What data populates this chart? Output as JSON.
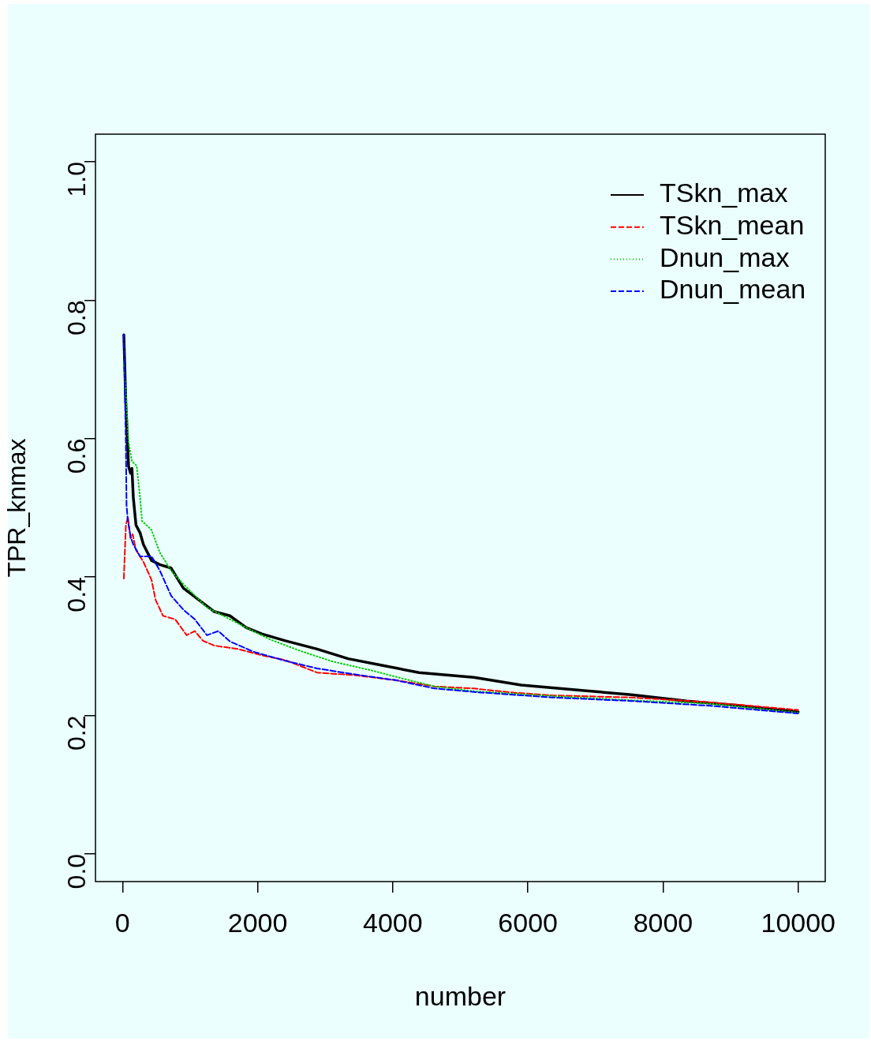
{
  "chart_data": {
    "type": "line",
    "xlabel": "number",
    "ylabel": "TPR_knmax",
    "xlim": [
      -400,
      10400
    ],
    "ylim": [
      -0.04,
      1.04
    ],
    "xticks": [
      0,
      2000,
      4000,
      6000,
      8000,
      10000
    ],
    "yticks": [
      {
        "value": 0,
        "label": "0.0"
      },
      {
        "value": 0.2,
        "label": "0.2"
      },
      {
        "value": 0.4,
        "label": "0.4"
      },
      {
        "value": 0.6,
        "label": "0.6"
      },
      {
        "value": 0.8,
        "label": "0.8"
      },
      {
        "value": 1,
        "label": "1.0"
      }
    ],
    "grid": false,
    "legend": "top right",
    "marker": "none",
    "series": [
      {
        "name": "TSkn_max",
        "color": "#000000",
        "line_style": "solid",
        "x": [
          20,
          50,
          90,
          120,
          140,
          160,
          200,
          260,
          310,
          430,
          550,
          720,
          900,
          1130,
          1360,
          1590,
          1830,
          2060,
          2410,
          2880,
          3340,
          3810,
          4390,
          5200,
          5900,
          6830,
          7530,
          8350,
          9160,
          10000
        ],
        "values": [
          0.75,
          0.65,
          0.56,
          0.55,
          0.557,
          0.515,
          0.475,
          0.464,
          0.447,
          0.424,
          0.418,
          0.413,
          0.384,
          0.367,
          0.35,
          0.344,
          0.327,
          0.318,
          0.308,
          0.296,
          0.282,
          0.273,
          0.262,
          0.255,
          0.244,
          0.236,
          0.23,
          0.221,
          0.214,
          0.205
        ]
      },
      {
        "name": "TSkn_mean",
        "color": "#ff0000",
        "line_style": "dashed",
        "x": [
          20,
          50,
          80,
          120,
          150,
          200,
          310,
          430,
          490,
          600,
          780,
          950,
          1070,
          1190,
          1360,
          1710,
          2060,
          2410,
          2880,
          3460,
          4040,
          4620,
          5200,
          5790,
          6370,
          7530,
          8700,
          10000
        ],
        "values": [
          0.398,
          0.475,
          0.487,
          0.456,
          0.462,
          0.439,
          0.422,
          0.396,
          0.367,
          0.344,
          0.339,
          0.316,
          0.322,
          0.308,
          0.301,
          0.296,
          0.287,
          0.28,
          0.262,
          0.258,
          0.251,
          0.242,
          0.239,
          0.233,
          0.229,
          0.226,
          0.219,
          0.208
        ]
      },
      {
        "name": "Dnun_max",
        "color": "#00cd00",
        "line_style": "dotted",
        "x": [
          20,
          60,
          90,
          140,
          210,
          260,
          290,
          430,
          550,
          720,
          900,
          1250,
          1710,
          2180,
          2640,
          3110,
          3690,
          4160,
          4620,
          5200,
          6370,
          7530,
          8700,
          10000
        ],
        "values": [
          0.71,
          0.652,
          0.595,
          0.567,
          0.561,
          0.515,
          0.481,
          0.468,
          0.436,
          0.409,
          0.39,
          0.356,
          0.333,
          0.31,
          0.293,
          0.278,
          0.265,
          0.253,
          0.242,
          0.235,
          0.228,
          0.222,
          0.217,
          0.204
        ]
      },
      {
        "name": "Dnun_mean",
        "color": "#0000ff",
        "line_style": "dashed",
        "x": [
          20,
          50,
          60,
          80,
          120,
          160,
          260,
          430,
          550,
          720,
          900,
          1070,
          1250,
          1420,
          1590,
          1940,
          2410,
          2880,
          3460,
          4040,
          4620,
          5200,
          6370,
          7530,
          8700,
          10000
        ],
        "values": [
          0.75,
          0.595,
          0.504,
          0.481,
          0.458,
          0.447,
          0.43,
          0.43,
          0.41,
          0.373,
          0.353,
          0.339,
          0.316,
          0.322,
          0.307,
          0.292,
          0.279,
          0.268,
          0.259,
          0.251,
          0.239,
          0.234,
          0.226,
          0.221,
          0.214,
          0.203
        ]
      }
    ]
  }
}
